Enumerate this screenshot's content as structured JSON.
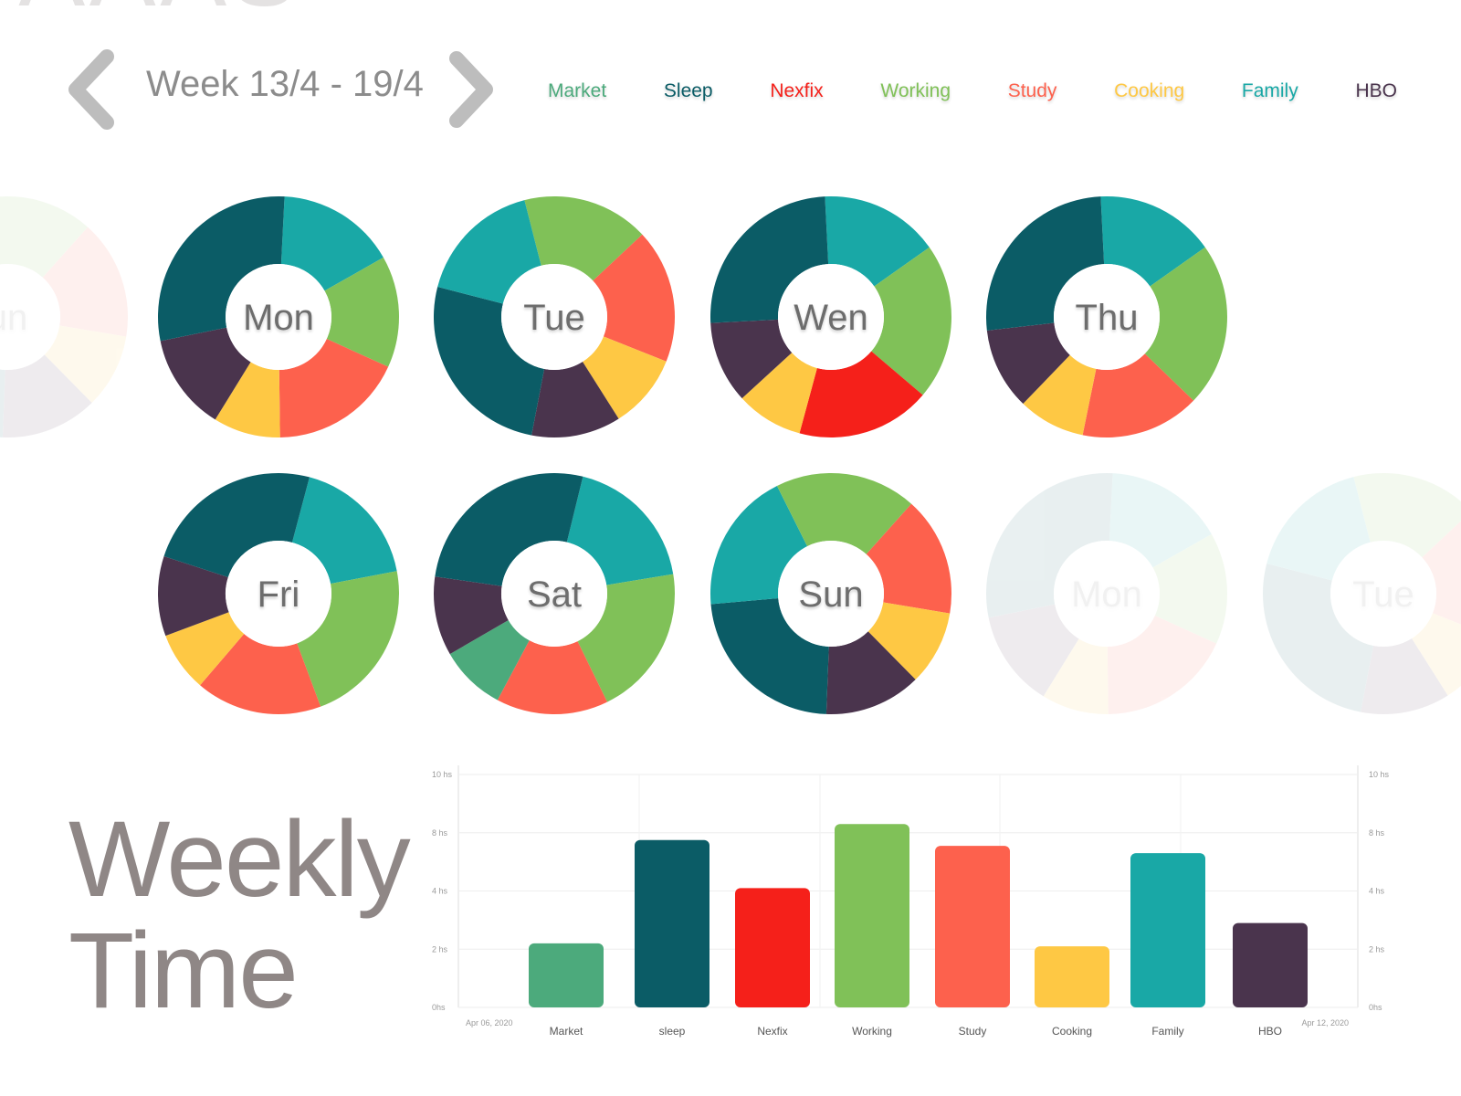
{
  "navigation": {
    "week_label": "Week 13/4 - 19/4",
    "prev_icon": "chevron-left-icon",
    "next_icon": "chevron-right-icon",
    "arrow_color": "#bdbdbd"
  },
  "categories": [
    {
      "key": "market",
      "label": "Market",
      "color": "#4caa7c"
    },
    {
      "key": "sleep",
      "label": "Sleep",
      "color": "#0b5c66"
    },
    {
      "key": "nexfix",
      "label": "Nexfix",
      "color": "#f5201a"
    },
    {
      "key": "working",
      "label": "Working",
      "color": "#80c158"
    },
    {
      "key": "study",
      "label": "Study",
      "color": "#fd614d"
    },
    {
      "key": "cooking",
      "label": "Cooking",
      "color": "#fec844"
    },
    {
      "key": "family",
      "label": "Family",
      "color": "#19a8a6"
    },
    {
      "key": "hbo",
      "label": "HBO",
      "color": "#4a344d"
    }
  ],
  "days": [
    {
      "label": "Mon",
      "slices": [
        {
          "cat": "family",
          "value": 16
        },
        {
          "cat": "working",
          "value": 15
        },
        {
          "cat": "study",
          "value": 18
        },
        {
          "cat": "cooking",
          "value": 9
        },
        {
          "cat": "hbo",
          "value": 13
        },
        {
          "cat": "sleep",
          "value": 29
        }
      ]
    },
    {
      "label": "Tue",
      "slices": [
        {
          "cat": "working",
          "value": 17
        },
        {
          "cat": "study",
          "value": 18
        },
        {
          "cat": "cooking",
          "value": 10
        },
        {
          "cat": "hbo",
          "value": 12
        },
        {
          "cat": "sleep",
          "value": 26
        },
        {
          "cat": "family",
          "value": 17
        }
      ]
    },
    {
      "label": "Wen",
      "slices": [
        {
          "cat": "family",
          "value": 16
        },
        {
          "cat": "working",
          "value": 21
        },
        {
          "cat": "nexfix",
          "value": 18
        },
        {
          "cat": "cooking",
          "value": 9
        },
        {
          "cat": "hbo",
          "value": 11
        },
        {
          "cat": "sleep",
          "value": 25
        }
      ]
    },
    {
      "label": "Thu",
      "slices": [
        {
          "cat": "family",
          "value": 16
        },
        {
          "cat": "working",
          "value": 22
        },
        {
          "cat": "study",
          "value": 16
        },
        {
          "cat": "cooking",
          "value": 9
        },
        {
          "cat": "hbo",
          "value": 11
        },
        {
          "cat": "sleep",
          "value": 26
        }
      ]
    },
    {
      "label": "Fri",
      "slices": [
        {
          "cat": "family",
          "value": 20
        },
        {
          "cat": "working",
          "value": 25
        },
        {
          "cat": "study",
          "value": 19
        },
        {
          "cat": "cooking",
          "value": 9
        },
        {
          "cat": "hbo",
          "value": 12
        },
        {
          "cat": "sleep",
          "value": 27
        }
      ]
    },
    {
      "label": "Sat",
      "slices": [
        {
          "cat": "family",
          "value": 21
        },
        {
          "cat": "working",
          "value": 23
        },
        {
          "cat": "study",
          "value": 17
        },
        {
          "cat": "market",
          "value": 10
        },
        {
          "cat": "hbo",
          "value": 12
        },
        {
          "cat": "sleep",
          "value": 30
        }
      ]
    },
    {
      "label": "Sun",
      "slices": [
        {
          "cat": "study",
          "value": 16
        },
        {
          "cat": "cooking",
          "value": 10
        },
        {
          "cat": "hbo",
          "value": 13
        },
        {
          "cat": "sleep",
          "value": 23
        },
        {
          "cat": "family",
          "value": 19
        },
        {
          "cat": "working",
          "value": 19
        }
      ]
    }
  ],
  "ghost_days": {
    "left": {
      "label": "un"
    },
    "right": [
      {
        "label": "Mon"
      },
      {
        "label": "Tue"
      }
    ]
  },
  "weekly": {
    "title_line1": "Weekly",
    "title_line2": "Time",
    "chart_data": {
      "type": "bar",
      "categories": [
        "Market",
        "sleep",
        "Nexfix",
        "Working",
        "Study",
        "Cooking",
        "Family",
        "HBO"
      ],
      "values": [
        2.2,
        7.5,
        4.2,
        8.3,
        7.1,
        2.1,
        6.6,
        2.9
      ],
      "colors": [
        "#4caa7c",
        "#0b5c66",
        "#f5201a",
        "#80c158",
        "#fd614d",
        "#fec844",
        "#19a8a6",
        "#4a344d"
      ],
      "y_ticks": [
        0,
        2,
        4,
        8,
        10
      ],
      "y_tick_labels": [
        "0hs",
        "2 hs",
        "4 hs",
        "8 hs",
        "10 hs"
      ],
      "start_label": "Apr 06, 2020",
      "end_label": "Apr 12, 2020",
      "grid": true
    }
  }
}
